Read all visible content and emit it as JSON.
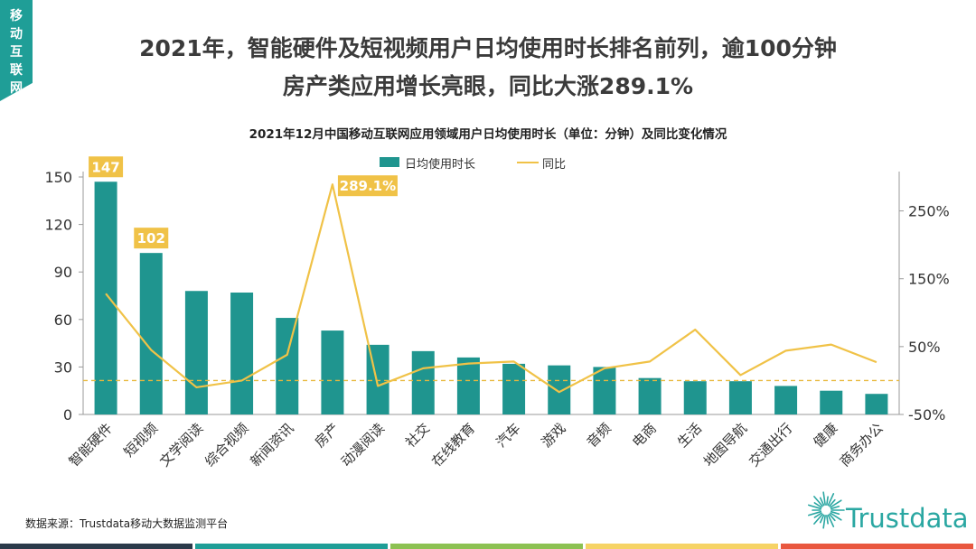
{
  "side_tag": "移动互联网",
  "title_line1": "2021年，智能硬件及短视频用户日均使用时长排名前列，逾100分钟",
  "title_line2": "房产类应用增长亮眼，同比大涨289.1%",
  "source": "数据来源：Trustdata移动大数据监测平台",
  "logo_text": "Trustdata",
  "colors": {
    "bar": "#1f958f",
    "line": "#f0c247",
    "callout": "#f0c247",
    "side_tag": "#1f9e97",
    "strip": [
      "#2b3a4a",
      "#1f9e97",
      "#8cc152",
      "#f6d365",
      "#e9573f"
    ]
  },
  "chart_data": {
    "type": "bar",
    "title": "2021年12月中国移动互联网应用领域用户日均使用时长（单位：分钟）及同比变化情况",
    "categories": [
      "智能硬件",
      "短视频",
      "文学阅读",
      "综合视频",
      "新闻资讯",
      "房产",
      "动漫阅读",
      "社交",
      "在线教育",
      "汽车",
      "游戏",
      "音频",
      "电商",
      "生活",
      "地图导航",
      "交通出行",
      "健康",
      "商务办公"
    ],
    "series": [
      {
        "name": "日均使用时长",
        "axis": "left",
        "type": "bar",
        "values": [
          147,
          102,
          78,
          77,
          61,
          53,
          44,
          40,
          36,
          32,
          31,
          30,
          23,
          21,
          21,
          18,
          15,
          13
        ]
      },
      {
        "name": "同比",
        "axis": "right",
        "type": "line",
        "unit": "%",
        "values": [
          128,
          45,
          -10,
          0,
          38,
          289.1,
          -8,
          18,
          25,
          28,
          -17,
          18,
          28,
          75,
          8,
          44,
          53,
          27
        ]
      }
    ],
    "y_left": {
      "min": 0,
      "max": 150,
      "ticks": [
        "0",
        "30",
        "60",
        "90",
        "120",
        "150"
      ]
    },
    "y_right": {
      "min": -50,
      "max": 300,
      "ticks": [
        "-50%",
        "50%",
        "150%",
        "250%"
      ]
    },
    "reference_line_right_value": 0,
    "callouts": [
      {
        "category": "智能硬件",
        "text": "147"
      },
      {
        "category": "短视频",
        "text": "102"
      },
      {
        "category": "房产",
        "text": "289.1%"
      }
    ],
    "legend": [
      "日均使用时长",
      "同比"
    ],
    "legend_position": "top-center"
  }
}
